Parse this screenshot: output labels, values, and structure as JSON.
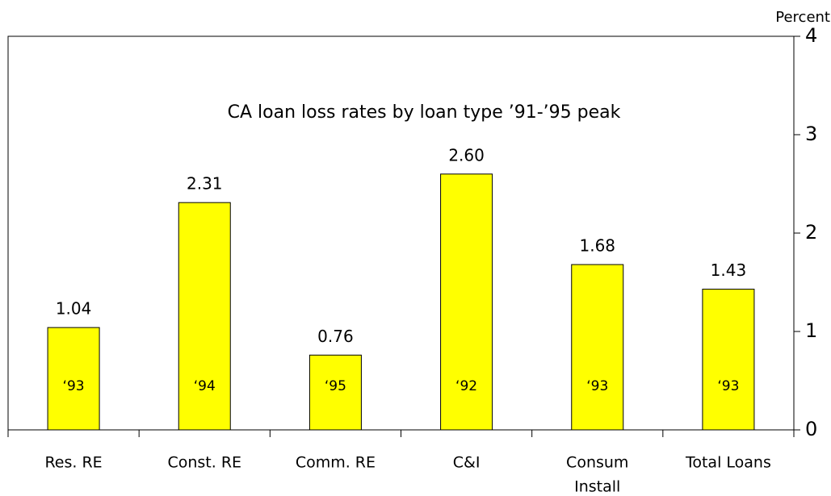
{
  "chart_data": {
    "type": "bar",
    "title": "CA loan loss rates by loan type ’91-’95 peak",
    "y_axis_label": "Percent",
    "categories": [
      "Res. RE",
      "Const. RE",
      "Comm. RE",
      "C&I",
      [
        "Consum",
        "Install"
      ],
      "Total Loans"
    ],
    "values": [
      1.04,
      2.31,
      0.76,
      2.6,
      1.68,
      1.43
    ],
    "value_labels": [
      "1.04",
      "2.31",
      "0.76",
      "2.60",
      "1.68",
      "1.43"
    ],
    "bar_annotations": [
      "‘93",
      "‘94",
      "‘95",
      "‘92",
      "‘93",
      "‘93"
    ],
    "color": "#ffff00",
    "ylim": [
      0,
      4
    ],
    "yticks": [
      0,
      1,
      2,
      3,
      4
    ],
    "y_axis_side": "right",
    "grid": false
  }
}
